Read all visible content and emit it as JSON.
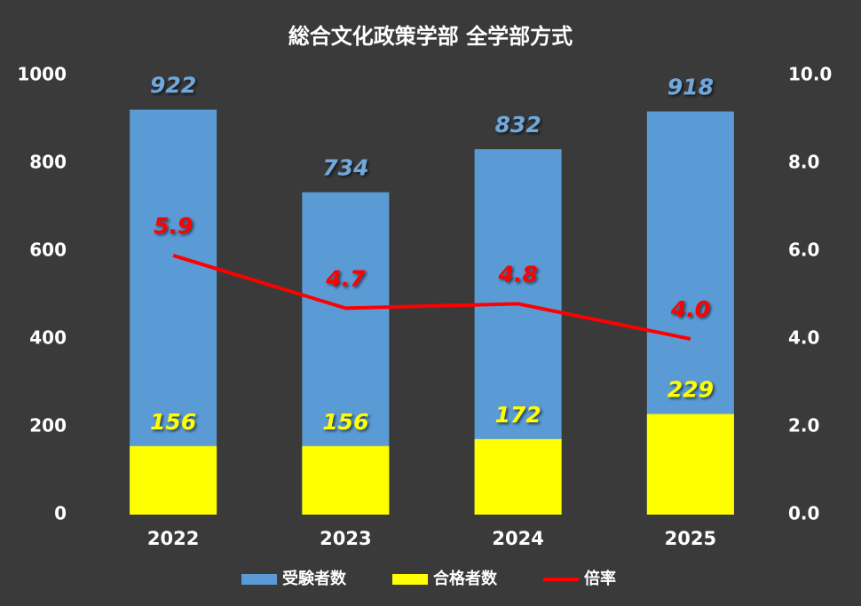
{
  "chart_data": {
    "type": "bar",
    "title": "総合文化政策学部 全学部方式",
    "categories": [
      "2022",
      "2023",
      "2024",
      "2025"
    ],
    "series": [
      {
        "name": "受験者数",
        "type": "bar",
        "color": "#5b9bd5",
        "label_color": "#6fa8dc",
        "values": [
          922,
          734,
          832,
          918
        ]
      },
      {
        "name": "合格者数",
        "type": "bar",
        "color": "#ffff00",
        "label_color": "#ffff00",
        "values": [
          156,
          156,
          172,
          229
        ]
      },
      {
        "name": "倍率",
        "type": "line",
        "axis": "y2",
        "color": "#ff0000",
        "label_color": "#ff0000",
        "values": [
          5.9,
          4.7,
          4.8,
          4.0
        ],
        "value_labels": [
          "5.9",
          "4.7",
          "4.8",
          "4.0"
        ]
      }
    ],
    "ylim": [
      0,
      1000
    ],
    "yticks": [
      0,
      200,
      400,
      600,
      800,
      1000
    ],
    "y2lim": [
      0,
      10
    ],
    "y2ticks": [
      {
        "value": 0,
        "label": "0.0"
      },
      {
        "value": 2,
        "label": "2.0"
      },
      {
        "value": 4,
        "label": "4.0"
      },
      {
        "value": 6,
        "label": "6.0"
      },
      {
        "value": 8,
        "label": "8.0"
      },
      {
        "value": 10,
        "label": "10.0"
      }
    ],
    "grid": false
  }
}
